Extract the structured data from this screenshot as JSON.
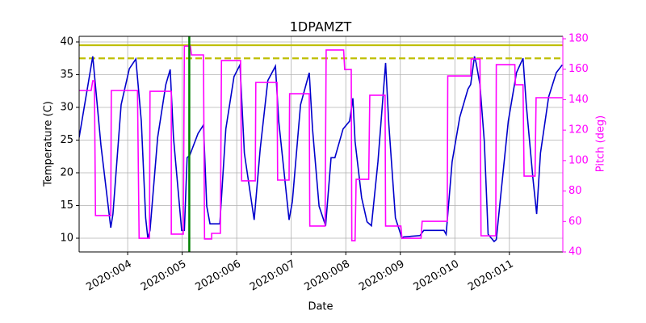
{
  "chart_data": {
    "type": "line",
    "title": "1DPAMZT",
    "xlabel": "Date",
    "ylabel": "Temperature (C)",
    "y2label": "Pitch (deg)",
    "y2color": "#ff00ff",
    "grid": true,
    "xlim": [
      3.11,
      11.98
    ],
    "xticks": [
      {
        "value": 4,
        "label": "2020:004"
      },
      {
        "value": 5,
        "label": "2020:005"
      },
      {
        "value": 6,
        "label": "2020:006"
      },
      {
        "value": 7,
        "label": "2020:007"
      },
      {
        "value": 8,
        "label": "2020:008"
      },
      {
        "value": 9,
        "label": "2020:009"
      },
      {
        "value": 10,
        "label": "2020:010"
      },
      {
        "value": 11,
        "label": "2020:011"
      }
    ],
    "ylim": [
      7.9,
      40.86
    ],
    "yticks": [
      10,
      15,
      20,
      25,
      30,
      35,
      40
    ],
    "y2lim": [
      40,
      181.6
    ],
    "y2ticks": [
      40,
      60,
      80,
      100,
      120,
      140,
      160,
      180
    ],
    "hlines": [
      {
        "value": 39.5,
        "color": "#bfbf00",
        "dashed": false
      },
      {
        "value": 37.5,
        "color": "#bfbf00",
        "dashed": true
      }
    ],
    "vlines": [
      {
        "value": 5.13,
        "color": "#008000"
      }
    ],
    "series": [
      {
        "color": "#0000cc",
        "x": [
          3.11,
          3.36,
          3.51,
          3.66,
          3.69,
          3.73,
          3.88,
          4.03,
          4.15,
          4.25,
          4.33,
          4.37,
          4.41,
          4.55,
          4.7,
          4.78,
          4.84,
          4.99,
          5.04,
          5.09,
          5.14,
          5.29,
          5.39,
          5.45,
          5.51,
          5.69,
          5.8,
          5.95,
          6.06,
          6.14,
          6.32,
          6.43,
          6.57,
          6.71,
          6.77,
          6.96,
          7.02,
          7.17,
          7.33,
          7.39,
          7.51,
          7.63,
          7.73,
          7.8,
          7.95,
          8.07,
          8.13,
          8.17,
          8.29,
          8.39,
          8.47,
          8.59,
          8.73,
          8.79,
          8.91,
          9.03,
          9.06,
          9.36,
          9.43,
          9.8,
          9.84,
          9.95,
          10.09,
          10.24,
          10.29,
          10.36,
          10.39,
          10.46,
          10.54,
          10.61,
          10.72,
          10.76,
          10.83,
          10.98,
          11.13,
          11.25,
          11.31,
          11.43,
          11.5,
          11.57,
          11.72,
          11.86,
          11.97
        ],
        "values": [
          25.4,
          37.8,
          24.2,
          13.7,
          11.6,
          13.7,
          30.4,
          35.9,
          37.4,
          27.9,
          13.1,
          10.0,
          11.2,
          25.4,
          33.5,
          35.8,
          25.4,
          11.2,
          11.2,
          22.3,
          22.7,
          26.0,
          27.3,
          14.9,
          12.2,
          12.2,
          26.7,
          34.7,
          36.5,
          23.0,
          12.8,
          23.6,
          34.1,
          36.3,
          27.9,
          12.8,
          15.6,
          30.4,
          35.3,
          26.7,
          14.9,
          11.9,
          22.3,
          22.3,
          26.7,
          27.9,
          31.4,
          24.8,
          16.2,
          12.5,
          11.9,
          21.7,
          36.8,
          27.3,
          13.1,
          10.0,
          10.2,
          10.4,
          11.2,
          11.2,
          10.6,
          21.7,
          28.5,
          32.8,
          33.5,
          37.8,
          36.8,
          33.5,
          24.8,
          10.6,
          9.5,
          9.8,
          15.6,
          27.9,
          35.3,
          37.5,
          30.4,
          19.3,
          13.7,
          23.0,
          31.6,
          35.3,
          36.5
        ]
      },
      {
        "color": "#ff00ff",
        "axis": "y2",
        "x": [
          3.11,
          3.33,
          3.36,
          3.39,
          3.41,
          3.69,
          3.7,
          4.18,
          4.21,
          4.4,
          4.41,
          4.8,
          4.8,
          5.02,
          5.04,
          5.15,
          5.17,
          5.39,
          5.41,
          5.54,
          5.54,
          5.7,
          5.72,
          6.07,
          6.09,
          6.34,
          6.35,
          6.74,
          6.75,
          6.96,
          6.97,
          7.33,
          7.34,
          7.62,
          7.64,
          7.96,
          7.98,
          8.1,
          8.11,
          8.17,
          8.19,
          8.42,
          8.44,
          8.72,
          8.73,
          9.01,
          9.03,
          9.38,
          9.4,
          9.86,
          9.87,
          10.29,
          10.3,
          10.46,
          10.48,
          10.75,
          10.76,
          11.1,
          11.11,
          11.25,
          11.27,
          11.47,
          11.49,
          11.97
        ],
        "values": [
          146,
          146,
          152.4,
          152.4,
          63.9,
          63.9,
          146,
          146,
          49,
          49,
          145.5,
          145.5,
          51.7,
          51.7,
          175.2,
          175.2,
          169.4,
          169.4,
          48.5,
          48.5,
          52.2,
          52.2,
          165.7,
          165.7,
          86.7,
          86.7,
          151.3,
          151.3,
          87.2,
          87.2,
          143.9,
          143.9,
          57,
          57,
          172.6,
          172.6,
          159.8,
          159.8,
          47.4,
          47.4,
          87.7,
          87.7,
          142.9,
          142.9,
          57,
          57,
          49,
          49,
          60.1,
          60.1,
          155.6,
          155.6,
          166.7,
          166.7,
          50.6,
          50.6,
          163,
          163,
          149.8,
          149.8,
          89.8,
          89.8,
          141.3,
          141.3
        ]
      }
    ]
  }
}
